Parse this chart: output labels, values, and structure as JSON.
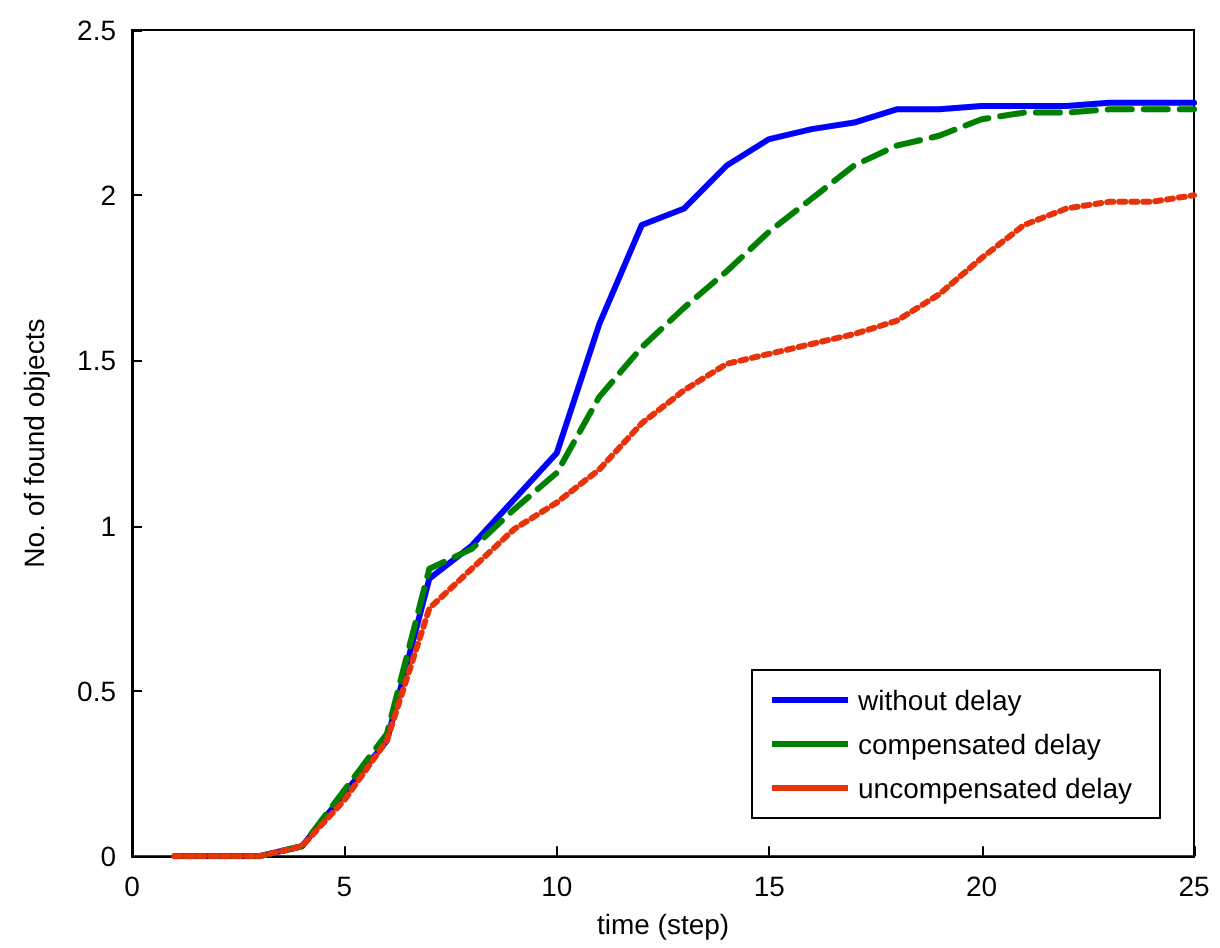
{
  "chart_data": {
    "type": "line",
    "xlabel": "time (step)",
    "ylabel": "No. of found objects",
    "x": [
      1,
      2,
      3,
      4,
      5,
      6,
      7,
      8,
      9,
      10,
      11,
      12,
      13,
      14,
      15,
      16,
      17,
      18,
      19,
      20,
      21,
      22,
      23,
      24,
      25
    ],
    "series": [
      {
        "name": "without delay",
        "color": "#0000ff",
        "line_style": "solid",
        "values": [
          0,
          0,
          0,
          0.03,
          0.19,
          0.35,
          0.84,
          0.94,
          1.08,
          1.22,
          1.61,
          1.91,
          1.96,
          2.09,
          2.17,
          2.2,
          2.22,
          2.26,
          2.26,
          2.27,
          2.27,
          2.27,
          2.28,
          2.28,
          2.28
        ]
      },
      {
        "name": "compensated delay",
        "color": "#008000",
        "line_style": "dashed",
        "values": [
          0,
          0,
          0,
          0.03,
          0.2,
          0.37,
          0.87,
          0.93,
          1.05,
          1.16,
          1.39,
          1.54,
          1.66,
          1.77,
          1.89,
          1.99,
          2.09,
          2.15,
          2.18,
          2.23,
          2.25,
          2.25,
          2.26,
          2.26,
          2.26
        ]
      },
      {
        "name": "uncompensated delay",
        "color": "#e8320a",
        "line_style": "dotted",
        "values": [
          0,
          0,
          0,
          0.03,
          0.17,
          0.35,
          0.75,
          0.87,
          0.99,
          1.07,
          1.17,
          1.31,
          1.41,
          1.49,
          1.52,
          1.55,
          1.58,
          1.62,
          1.7,
          1.81,
          1.91,
          1.96,
          1.98,
          1.98,
          2.0
        ]
      }
    ],
    "xlim": [
      0,
      25
    ],
    "xticks": [
      0,
      5,
      10,
      15,
      20,
      25
    ],
    "ylim": [
      0,
      2.5
    ],
    "yticks": [
      0,
      0.5,
      1,
      1.5,
      2,
      2.5
    ],
    "grid": false,
    "legend": "bottom right",
    "marker": "none"
  }
}
